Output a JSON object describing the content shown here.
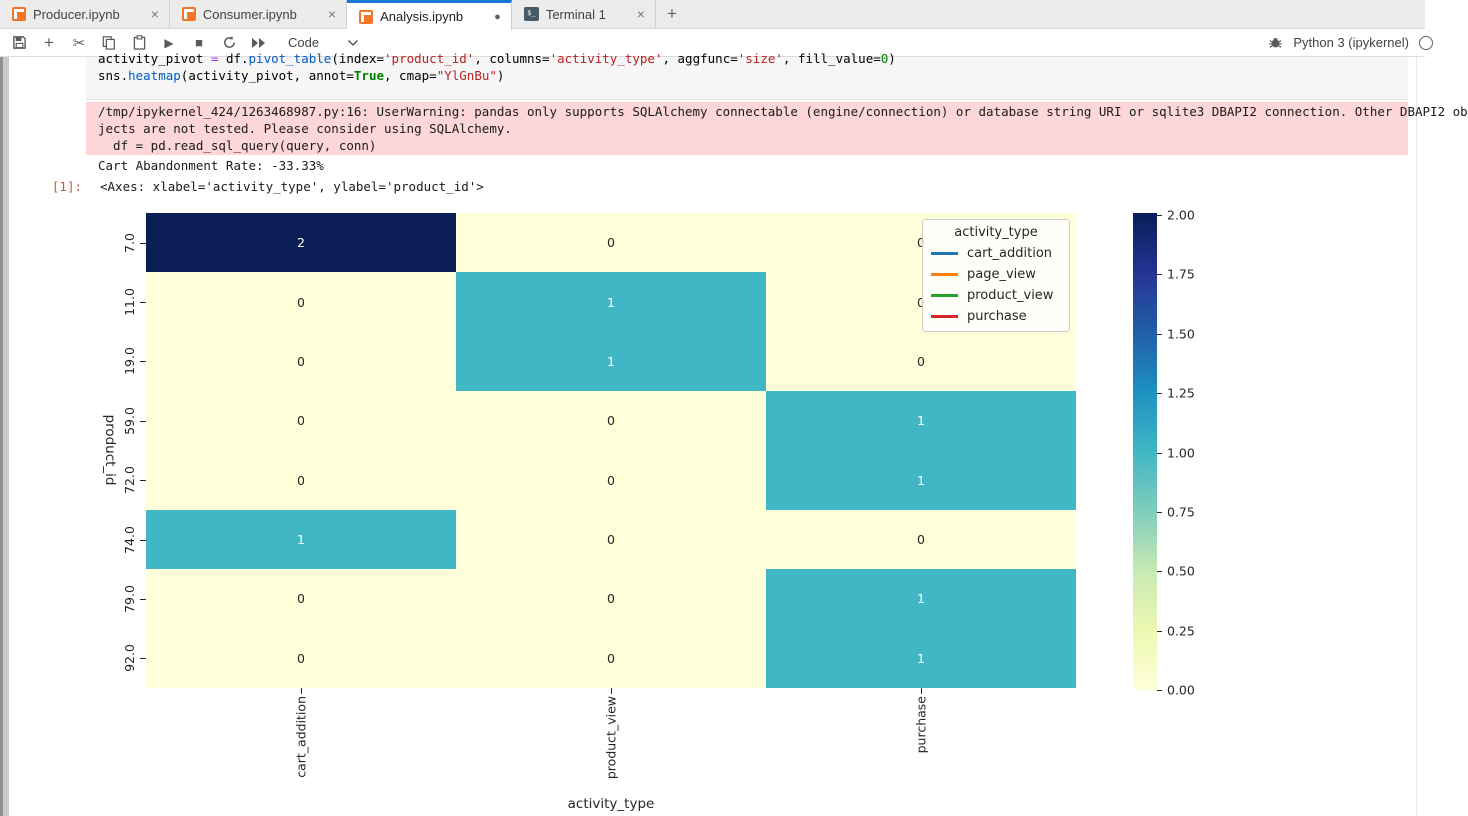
{
  "tabs": [
    {
      "label": "Producer.ipynb",
      "icon": "notebook",
      "close": "×",
      "active": false
    },
    {
      "label": "Consumer.ipynb",
      "icon": "notebook",
      "close": "×",
      "active": false
    },
    {
      "label": "Analysis.ipynb",
      "icon": "notebook",
      "dirty": "●",
      "active": true
    },
    {
      "label": "Terminal 1",
      "icon": "terminal",
      "icon_glyph": "$_",
      "close": "×",
      "active": false
    }
  ],
  "tabbar": {
    "new_tab": "+"
  },
  "toolbar": {
    "cell_type": "Code",
    "kernel_name": "Python 3 (ipykernel)",
    "icons": [
      "save",
      "add-cell",
      "cut",
      "copy",
      "paste",
      "run",
      "stop",
      "restart-kernel",
      "restart-run-all",
      "debugger",
      "kernel-status"
    ]
  },
  "cell": {
    "code_lines": [
      [
        {
          "t": "activity_pivot ",
          "c": "plain"
        },
        {
          "t": "=",
          "c": "op"
        },
        {
          "t": " df.",
          "c": "plain"
        },
        {
          "t": "pivot_table",
          "c": "fn"
        },
        {
          "t": "(index=",
          "c": "plain"
        },
        {
          "t": "'product_id'",
          "c": "str"
        },
        {
          "t": ", columns=",
          "c": "plain"
        },
        {
          "t": "'activity_type'",
          "c": "str"
        },
        {
          "t": ", aggfunc=",
          "c": "plain"
        },
        {
          "t": "'size'",
          "c": "str"
        },
        {
          "t": ", fill_value=",
          "c": "plain"
        },
        {
          "t": "0",
          "c": "num"
        },
        {
          "t": ")",
          "c": "plain"
        }
      ],
      [
        {
          "t": "sns.",
          "c": "plain"
        },
        {
          "t": "heatmap",
          "c": "fn"
        },
        {
          "t": "(activity_pivot, annot=",
          "c": "plain"
        },
        {
          "t": "True",
          "c": "kw"
        },
        {
          "t": ", cmap=",
          "c": "plain"
        },
        {
          "t": "\"YlGnBu\"",
          "c": "str"
        },
        {
          "t": ")",
          "c": "plain"
        }
      ]
    ]
  },
  "outputs": {
    "warning_lines": [
      "/tmp/ipykernel_424/1263468987.py:16: UserWarning: pandas only supports SQLAlchemy connectable (engine/connection) or database string URI or sqlite3 DBAPI2 connection. Other DBAPI2 ob",
      "jects are not tested. Please consider using SQLAlchemy.",
      "  df = pd.read_sql_query(query, conn)"
    ],
    "stream_line": "Cart Abandonment Rate: -33.33%",
    "out_prompt": "[1]:",
    "repr": "<Axes: xlabel='activity_type', ylabel='product_id'>"
  },
  "chart_data": {
    "type": "heatmap",
    "title": "",
    "xlabel": "activity_type",
    "ylabel": "product_id",
    "x_categories": [
      "cart_addition",
      "product_view",
      "purchase"
    ],
    "y_categories": [
      "7.0",
      "11.0",
      "19.0",
      "59.0",
      "72.0",
      "74.0",
      "79.0",
      "92.0"
    ],
    "values": [
      [
        2,
        0,
        0
      ],
      [
        0,
        1,
        0
      ],
      [
        0,
        1,
        0
      ],
      [
        0,
        0,
        1
      ],
      [
        0,
        0,
        1
      ],
      [
        1,
        0,
        0
      ],
      [
        0,
        0,
        1
      ],
      [
        0,
        0,
        1
      ]
    ],
    "cmap": "YlGnBu",
    "vmin": 0,
    "vmax": 2,
    "colorbar_ticks": [
      "2.00",
      "1.75",
      "1.50",
      "1.25",
      "1.00",
      "0.75",
      "0.50",
      "0.25",
      "0.00"
    ],
    "legend": {
      "title": "activity_type",
      "position": "upper right",
      "entries": [
        {
          "label": "cart_addition",
          "color": "#1f77b4"
        },
        {
          "label": "page_view",
          "color": "#ff7f0e"
        },
        {
          "label": "product_view",
          "color": "#2ca02c"
        },
        {
          "label": "purchase",
          "color": "#d62728"
        }
      ]
    },
    "cell_colors": {
      "0": "#ffffd9",
      "1": "#41b6c4",
      "2": "#0b1d55"
    },
    "annot_colors": {
      "0": "#262626",
      "1": "#ffffff",
      "2": "#ffffff"
    }
  },
  "colors": {
    "accent_blue": "#1976d2",
    "notebook_orange": "#f37626",
    "warning_bg": "#fdd7d7",
    "out_prompt": "#bf5b3d"
  }
}
